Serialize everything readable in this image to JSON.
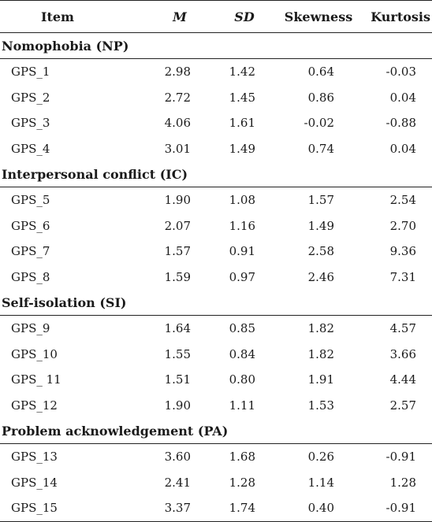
{
  "headers": {
    "item": "Item",
    "m": "M",
    "sd": "SD",
    "skewness": "Skewness",
    "kurtosis": "Kurtosis"
  },
  "groups": [
    {
      "title": "Nomophobia (NP)",
      "rows": [
        {
          "item": "GPS_1",
          "m": "2.98",
          "sd": "1.42",
          "skewness": "0.64",
          "kurtosis": "-0.03"
        },
        {
          "item": "GPS_2",
          "m": "2.72",
          "sd": "1.45",
          "skewness": "0.86",
          "kurtosis": "0.04"
        },
        {
          "item": "GPS_3",
          "m": "4.06",
          "sd": "1.61",
          "skewness": "-0.02",
          "kurtosis": "-0.88"
        },
        {
          "item": "GPS_4",
          "m": "3.01",
          "sd": "1.49",
          "skewness": "0.74",
          "kurtosis": "0.04"
        }
      ]
    },
    {
      "title": "Interpersonal conflict (IC)",
      "rows": [
        {
          "item": "GPS_5",
          "m": "1.90",
          "sd": "1.08",
          "skewness": "1.57",
          "kurtosis": "2.54"
        },
        {
          "item": "GPS_6",
          "m": "2.07",
          "sd": "1.16",
          "skewness": "1.49",
          "kurtosis": "2.70"
        },
        {
          "item": "GPS_7",
          "m": "1.57",
          "sd": "0.91",
          "skewness": "2.58",
          "kurtosis": "9.36"
        },
        {
          "item": "GPS_8",
          "m": "1.59",
          "sd": "0.97",
          "skewness": "2.46",
          "kurtosis": "7.31"
        }
      ]
    },
    {
      "title": "Self-isolation (SI)",
      "rows": [
        {
          "item": "GPS_9",
          "m": "1.64",
          "sd": "0.85",
          "skewness": "1.82",
          "kurtosis": "4.57"
        },
        {
          "item": "GPS_10",
          "m": "1.55",
          "sd": "0.84",
          "skewness": "1.82",
          "kurtosis": "3.66"
        },
        {
          "item": "GPS_ 11",
          "m": "1.51",
          "sd": "0.80",
          "skewness": "1.91",
          "kurtosis": "4.44"
        },
        {
          "item": "GPS_12",
          "m": "1.90",
          "sd": "1.11",
          "skewness": "1.53",
          "kurtosis": "2.57"
        }
      ]
    },
    {
      "title": "Problem acknowledgement (PA)",
      "rows": [
        {
          "item": "GPS_13",
          "m": "3.60",
          "sd": "1.68",
          "skewness": "0.26",
          "kurtosis": "-0.91"
        },
        {
          "item": "GPS_14",
          "m": "2.41",
          "sd": "1.28",
          "skewness": "1.14",
          "kurtosis": "1.28"
        },
        {
          "item": "GPS_15",
          "m": "3.37",
          "sd": "1.74",
          "skewness": "0.40",
          "kurtosis": "-0.91"
        }
      ]
    }
  ]
}
